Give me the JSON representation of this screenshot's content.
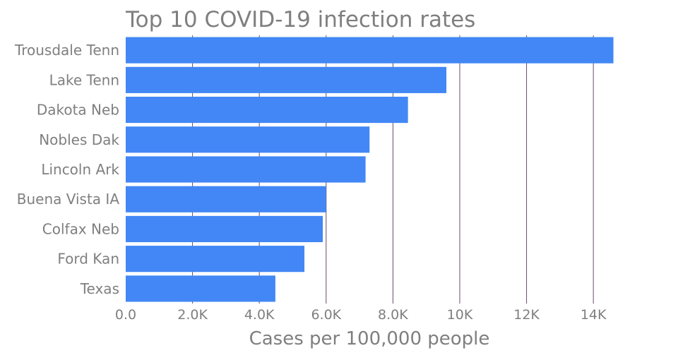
{
  "chart_data": {
    "type": "bar",
    "orientation": "horizontal",
    "title": "Top 10 COVID-19 infection rates",
    "xlabel": "Cases per 100,000 people",
    "ylabel": "",
    "xlim": [
      0,
      14800
    ],
    "x_ticks": [
      {
        "value": 0,
        "label": "0.0"
      },
      {
        "value": 2000,
        "label": "2.0K"
      },
      {
        "value": 4000,
        "label": "4.0K"
      },
      {
        "value": 6000,
        "label": "6.0K"
      },
      {
        "value": 8000,
        "label": "8.0K"
      },
      {
        "value": 10000,
        "label": "10K"
      },
      {
        "value": 12000,
        "label": "12K"
      },
      {
        "value": 14000,
        "label": "14K"
      }
    ],
    "grid": "vertical",
    "legend": "none",
    "bar_color": "#4287f5",
    "grid_color": "#6d4a6a",
    "text_color": "#7f7f7f",
    "categories": [
      "Trousdale Tenn",
      "Lake Tenn",
      "Dakota Neb",
      "Nobles Dak",
      "Lincoln Ark",
      "Buena Vista IA",
      "Colfax Neb",
      "Ford Kan",
      "Texas"
    ],
    "values": [
      14600,
      9600,
      8450,
      7300,
      7180,
      6000,
      5900,
      5350,
      4480
    ]
  }
}
